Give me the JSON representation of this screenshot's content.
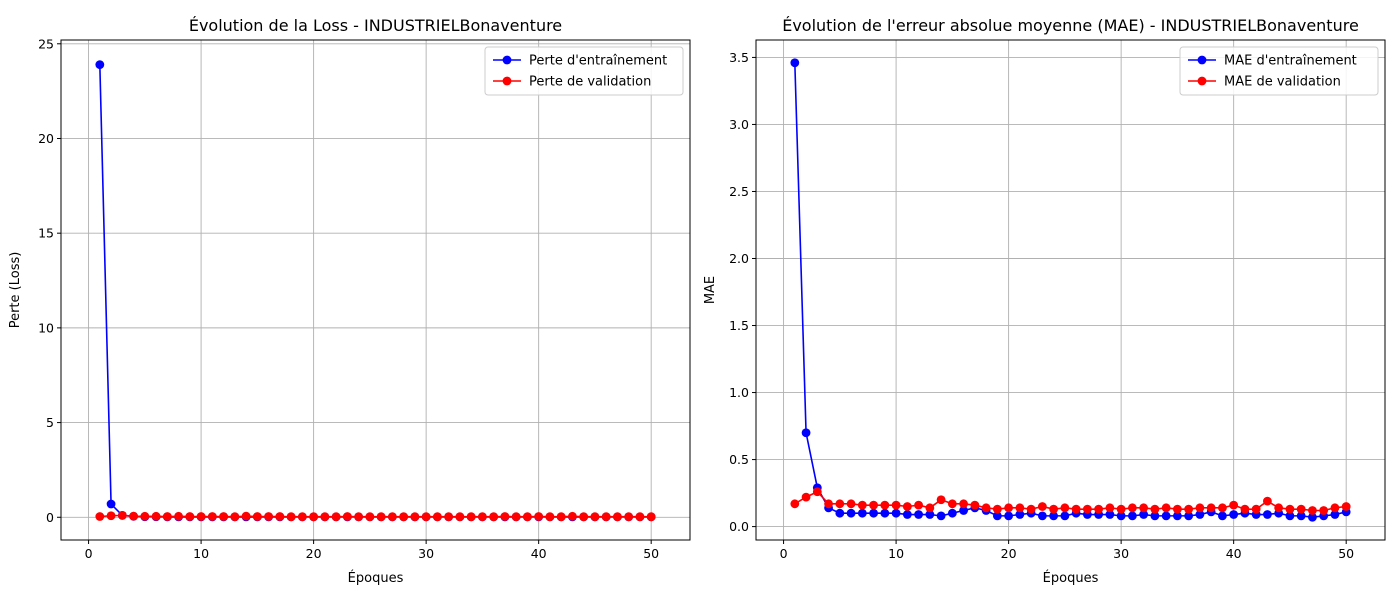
{
  "chart_data": [
    {
      "type": "line",
      "title": "Évolution de la Loss - INDUSTRIELBonaventure",
      "xlabel": "Époques",
      "ylabel": "Perte (Loss)",
      "xlim": [
        -2.45,
        53.45
      ],
      "ylim": [
        -1.2,
        25.2
      ],
      "xticks": [
        0,
        10,
        20,
        30,
        40,
        50
      ],
      "yticks": [
        0,
        5,
        10,
        15,
        20,
        25
      ],
      "grid": true,
      "legend_position": "top-right",
      "x": [
        1,
        2,
        3,
        4,
        5,
        6,
        7,
        8,
        9,
        10,
        11,
        12,
        13,
        14,
        15,
        16,
        17,
        18,
        19,
        20,
        21,
        22,
        23,
        24,
        25,
        26,
        27,
        28,
        29,
        30,
        31,
        32,
        33,
        34,
        35,
        36,
        37,
        38,
        39,
        40,
        41,
        42,
        43,
        44,
        45,
        46,
        47,
        48,
        49,
        50
      ],
      "series": [
        {
          "name": "Perte d'entraînement",
          "color": "#0000ff",
          "values": [
            23.9,
            0.7,
            0.1,
            0.05,
            0.03,
            0.03,
            0.02,
            0.02,
            0.02,
            0.02,
            0.02,
            0.02,
            0.02,
            0.02,
            0.02,
            0.02,
            0.02,
            0.02,
            0.02,
            0.02,
            0.02,
            0.02,
            0.02,
            0.02,
            0.02,
            0.02,
            0.02,
            0.02,
            0.02,
            0.02,
            0.02,
            0.02,
            0.02,
            0.02,
            0.02,
            0.02,
            0.02,
            0.02,
            0.02,
            0.02,
            0.02,
            0.02,
            0.02,
            0.02,
            0.02,
            0.02,
            0.02,
            0.02,
            0.02,
            0.02
          ]
        },
        {
          "name": "Perte de validation",
          "color": "#ff0000",
          "values": [
            0.04,
            0.08,
            0.1,
            0.06,
            0.05,
            0.05,
            0.04,
            0.05,
            0.04,
            0.04,
            0.04,
            0.04,
            0.03,
            0.06,
            0.04,
            0.04,
            0.04,
            0.03,
            0.03,
            0.03,
            0.03,
            0.03,
            0.04,
            0.03,
            0.03,
            0.03,
            0.03,
            0.03,
            0.03,
            0.03,
            0.03,
            0.03,
            0.03,
            0.03,
            0.03,
            0.03,
            0.04,
            0.03,
            0.03,
            0.04,
            0.03,
            0.03,
            0.05,
            0.03,
            0.03,
            0.03,
            0.03,
            0.03,
            0.03,
            0.03
          ]
        }
      ]
    },
    {
      "type": "line",
      "title": "Évolution de l'erreur absolue moyenne (MAE) - INDUSTRIELBonaventure",
      "xlabel": "Époques",
      "ylabel": "MAE",
      "xlim": [
        -2.45,
        53.45
      ],
      "ylim": [
        -0.1,
        3.63
      ],
      "xticks": [
        0,
        10,
        20,
        30,
        40,
        50
      ],
      "yticks": [
        0.0,
        0.5,
        1.0,
        1.5,
        2.0,
        2.5,
        3.0,
        3.5
      ],
      "ytick_labels": [
        "0.0",
        "0.5",
        "1.0",
        "1.5",
        "2.0",
        "2.5",
        "3.0",
        "3.5"
      ],
      "grid": true,
      "legend_position": "top-right",
      "x": [
        1,
        2,
        3,
        4,
        5,
        6,
        7,
        8,
        9,
        10,
        11,
        12,
        13,
        14,
        15,
        16,
        17,
        18,
        19,
        20,
        21,
        22,
        23,
        24,
        25,
        26,
        27,
        28,
        29,
        30,
        31,
        32,
        33,
        34,
        35,
        36,
        37,
        38,
        39,
        40,
        41,
        42,
        43,
        44,
        45,
        46,
        47,
        48,
        49,
        50
      ],
      "series": [
        {
          "name": "MAE d'entraînement",
          "color": "#0000ff",
          "values": [
            3.46,
            0.7,
            0.29,
            0.14,
            0.1,
            0.1,
            0.1,
            0.1,
            0.1,
            0.1,
            0.09,
            0.09,
            0.09,
            0.08,
            0.1,
            0.12,
            0.14,
            0.12,
            0.08,
            0.08,
            0.09,
            0.1,
            0.08,
            0.08,
            0.08,
            0.1,
            0.09,
            0.09,
            0.09,
            0.08,
            0.08,
            0.09,
            0.08,
            0.08,
            0.08,
            0.08,
            0.09,
            0.11,
            0.08,
            0.09,
            0.1,
            0.09,
            0.09,
            0.1,
            0.08,
            0.08,
            0.07,
            0.08,
            0.09,
            0.11
          ]
        },
        {
          "name": "MAE de validation",
          "color": "#ff0000",
          "values": [
            0.17,
            0.22,
            0.26,
            0.17,
            0.17,
            0.17,
            0.16,
            0.16,
            0.16,
            0.16,
            0.15,
            0.16,
            0.14,
            0.2,
            0.17,
            0.17,
            0.16,
            0.14,
            0.13,
            0.14,
            0.14,
            0.13,
            0.15,
            0.13,
            0.14,
            0.13,
            0.13,
            0.13,
            0.14,
            0.13,
            0.14,
            0.14,
            0.13,
            0.14,
            0.13,
            0.13,
            0.14,
            0.14,
            0.14,
            0.16,
            0.13,
            0.13,
            0.19,
            0.14,
            0.13,
            0.13,
            0.12,
            0.12,
            0.14,
            0.15
          ]
        }
      ]
    }
  ]
}
